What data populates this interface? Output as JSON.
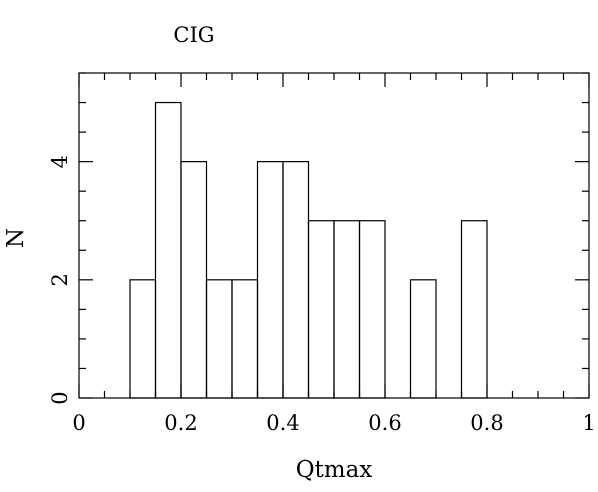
{
  "chart_data": {
    "type": "bar",
    "title": "CIG",
    "xlabel": "Qtmax",
    "ylabel": "N",
    "xlim": [
      0,
      1
    ],
    "ylim": [
      0,
      5.5
    ],
    "bin_width": 0.05,
    "bins": [
      {
        "x0": 0.1,
        "x1": 0.15,
        "count": 2
      },
      {
        "x0": 0.15,
        "x1": 0.2,
        "count": 5
      },
      {
        "x0": 0.2,
        "x1": 0.25,
        "count": 4
      },
      {
        "x0": 0.25,
        "x1": 0.3,
        "count": 2
      },
      {
        "x0": 0.3,
        "x1": 0.35,
        "count": 2
      },
      {
        "x0": 0.35,
        "x1": 0.4,
        "count": 4
      },
      {
        "x0": 0.4,
        "x1": 0.45,
        "count": 4
      },
      {
        "x0": 0.45,
        "x1": 0.5,
        "count": 3
      },
      {
        "x0": 0.5,
        "x1": 0.55,
        "count": 3
      },
      {
        "x0": 0.55,
        "x1": 0.6,
        "count": 3
      },
      {
        "x0": 0.6,
        "x1": 0.65,
        "count": 0
      },
      {
        "x0": 0.65,
        "x1": 0.7,
        "count": 2
      },
      {
        "x0": 0.7,
        "x1": 0.75,
        "count": 0
      },
      {
        "x0": 0.75,
        "x1": 0.8,
        "count": 3
      }
    ],
    "x_major_ticks": [
      0,
      0.2,
      0.4,
      0.6,
      0.8,
      1
    ],
    "x_tick_labels": [
      "0",
      "0.2",
      "0.4",
      "0.6",
      "0.8",
      "1"
    ],
    "x_minor_step": 0.05,
    "y_major_ticks": [
      0,
      2,
      4
    ],
    "y_tick_labels": [
      "0",
      "2",
      "4"
    ],
    "y_minor_step": 0.5,
    "grid": false,
    "line_color": "#000000",
    "background": "#ffffff"
  }
}
